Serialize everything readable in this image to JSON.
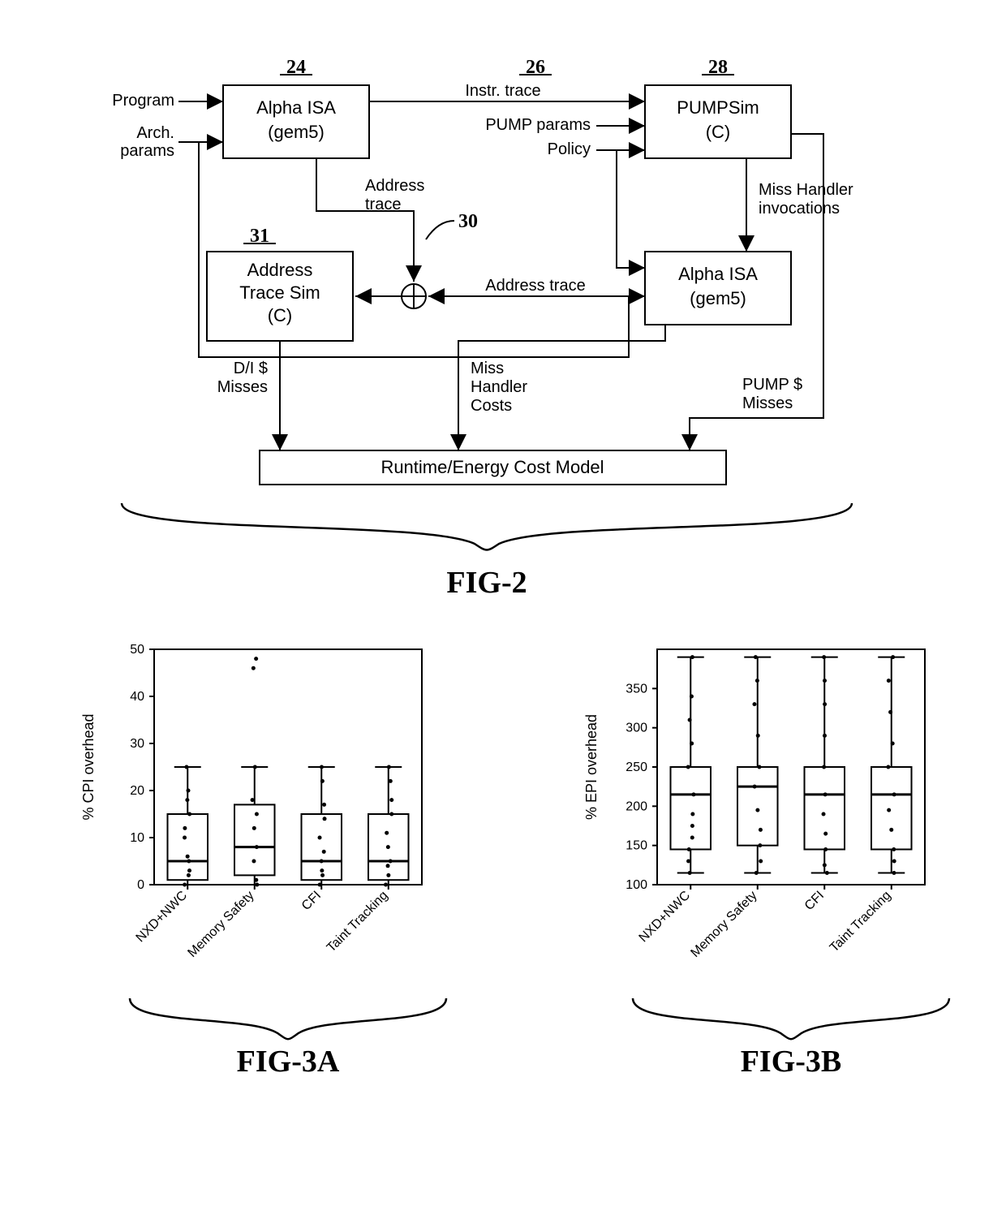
{
  "fig2": {
    "label": "FIG-2",
    "nodes": {
      "alpha1": {
        "num": "24",
        "lines": [
          "Alpha ISA",
          "(gem5)"
        ]
      },
      "pumpsim": {
        "num": "26",
        "num2": "28",
        "lines": [
          "PUMPSim",
          "(C)"
        ]
      },
      "addrtrace": {
        "num": "31",
        "lines": [
          "Address",
          "Trace Sim",
          "(C)"
        ]
      },
      "alpha2": {
        "lines": [
          "Alpha ISA",
          "(gem5)"
        ]
      },
      "costmodel": {
        "text": "Runtime/Energy Cost Model"
      },
      "addrnum": "30"
    },
    "inputs": {
      "program": "Program",
      "arch": "Arch.\nparams",
      "instrtrace": "Instr. trace",
      "pumpparams": "PUMP params",
      "policy": "Policy"
    },
    "edges": {
      "addresstrace": "Address\ntrace",
      "misshandler": "Miss Handler\ninvocations",
      "addresstrace2": "Address trace",
      "dimisses": "D/I $\nMisses",
      "misscosts": "Miss\nHandler\nCosts",
      "pumpmisses": "PUMP $\nMisses"
    },
    "style": {
      "stroke": "#000000",
      "stroke_width": 2,
      "box_fill": "#ffffff",
      "font_color": "#000000"
    }
  },
  "fig3a": {
    "label": "FIG-3A",
    "ylabel": "% CPI overhead",
    "ylim": [
      0,
      50
    ],
    "ytick_step": 10,
    "categories": [
      "NXD+NWC",
      "Memory Safety",
      "CFI",
      "Taint Tracking"
    ],
    "boxes": [
      {
        "q1": 1,
        "med": 5,
        "q3": 15,
        "wlo": 0,
        "whi": 25,
        "pts": [
          0,
          2,
          3,
          5,
          6,
          10,
          12,
          15,
          18,
          20,
          25
        ]
      },
      {
        "q1": 2,
        "med": 8,
        "q3": 17,
        "wlo": 0,
        "whi": 25,
        "pts": [
          0,
          1,
          5,
          8,
          12,
          15,
          18,
          25,
          46,
          48
        ]
      },
      {
        "q1": 1,
        "med": 5,
        "q3": 15,
        "wlo": 0,
        "whi": 25,
        "pts": [
          0,
          2,
          3,
          5,
          7,
          10,
          14,
          17,
          22,
          25
        ]
      },
      {
        "q1": 1,
        "med": 5,
        "q3": 15,
        "wlo": 0,
        "whi": 25,
        "pts": [
          0,
          2,
          4,
          5,
          8,
          11,
          15,
          18,
          22,
          25
        ]
      }
    ],
    "style": {
      "stroke": "#000000",
      "fill": "#ffffff",
      "line_w": 2,
      "pt_r": 2.5
    }
  },
  "fig3b": {
    "label": "FIG-3B",
    "ylabel": "% EPI overhead",
    "ylim": [
      100,
      400
    ],
    "yticks": [
      100,
      150,
      200,
      250,
      300,
      350
    ],
    "categories": [
      "NXD+NWC",
      "Memory Safety",
      "CFI",
      "Taint Tracking"
    ],
    "boxes": [
      {
        "q1": 145,
        "med": 215,
        "q3": 250,
        "wlo": 115,
        "whi": 390,
        "pts": [
          115,
          130,
          145,
          160,
          175,
          190,
          215,
          250,
          280,
          310,
          340,
          390
        ]
      },
      {
        "q1": 150,
        "med": 225,
        "q3": 250,
        "wlo": 115,
        "whi": 390,
        "pts": [
          115,
          130,
          150,
          170,
          195,
          225,
          250,
          290,
          330,
          360,
          390
        ]
      },
      {
        "q1": 145,
        "med": 215,
        "q3": 250,
        "wlo": 115,
        "whi": 390,
        "pts": [
          115,
          125,
          145,
          165,
          190,
          215,
          250,
          290,
          330,
          360,
          390
        ]
      },
      {
        "q1": 145,
        "med": 215,
        "q3": 250,
        "wlo": 115,
        "whi": 390,
        "pts": [
          115,
          130,
          145,
          170,
          195,
          215,
          250,
          280,
          320,
          360,
          390
        ]
      }
    ],
    "style": {
      "stroke": "#000000",
      "fill": "#ffffff",
      "line_w": 2,
      "pt_r": 2.5
    }
  }
}
